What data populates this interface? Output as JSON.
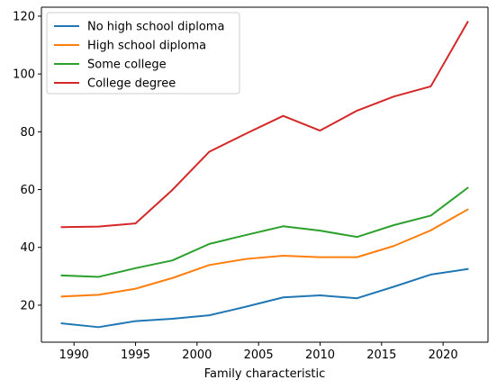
{
  "chart_data": {
    "type": "line",
    "title": "",
    "xlabel": "Family characteristic",
    "ylabel": "",
    "xlim": [
      1987.35,
      2023.65
    ],
    "ylim": [
      7.2,
      123.1
    ],
    "xticks": [
      1990,
      1995,
      2000,
      2005,
      2010,
      2015,
      2020
    ],
    "yticks": [
      20,
      40,
      60,
      80,
      100,
      120
    ],
    "grid": false,
    "legend_position": "top-left",
    "x": [
      1989,
      1992,
      1995,
      1998,
      2001,
      2004,
      2007,
      2010,
      2013,
      2016,
      2019,
      2022
    ],
    "series": [
      {
        "name": "No high school diploma",
        "color": "#1f77b4",
        "values": [
          13.7,
          12.4,
          14.5,
          15.3,
          16.5,
          19.5,
          22.7,
          23.4,
          22.4,
          26.4,
          30.6,
          32.5
        ]
      },
      {
        "name": "High school diploma",
        "color": "#ff7f0e",
        "values": [
          23.0,
          23.6,
          25.7,
          29.4,
          33.9,
          36.0,
          37.1,
          36.6,
          36.6,
          40.5,
          45.9,
          53.1
        ]
      },
      {
        "name": "Some college",
        "color": "#2ca02c",
        "values": [
          30.3,
          29.8,
          32.8,
          35.5,
          41.2,
          44.3,
          47.3,
          45.8,
          43.6,
          47.7,
          51.0,
          60.6
        ]
      },
      {
        "name": "College degree",
        "color": "#d62728",
        "values": [
          47.0,
          47.2,
          48.3,
          59.9,
          73.1,
          79.4,
          85.5,
          80.4,
          87.3,
          92.2,
          95.7,
          118.0
        ]
      }
    ]
  }
}
